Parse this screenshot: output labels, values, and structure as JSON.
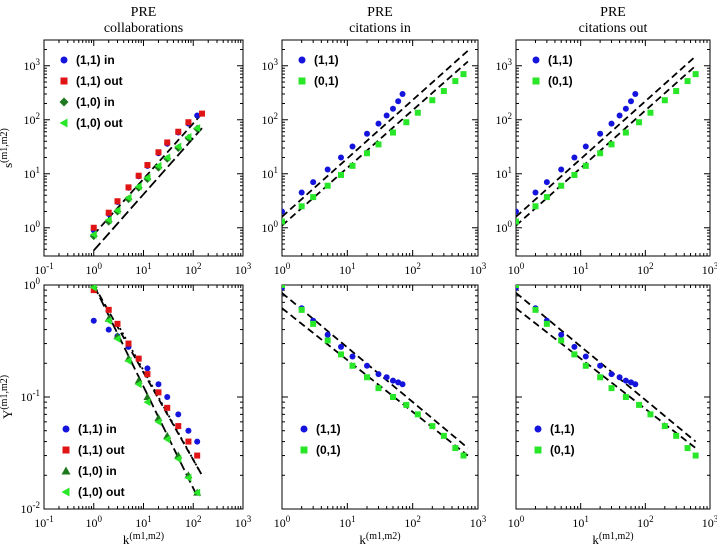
{
  "figure": {
    "shared_xlabel": "k",
    "shared_xlabel_sub": "(m1,m2)",
    "row_ylabels": [
      {
        "main": "s",
        "sub": "(m1,m2)"
      },
      {
        "main": "Y",
        "sub": "(m1,m2)"
      }
    ],
    "colors": {
      "blue": "#1414dc",
      "red": "#e01414",
      "darkgreen": "#1e781e",
      "lightgreen": "#28e628",
      "fit": "#000000"
    }
  },
  "chart_data": [
    {
      "id": "top-collab",
      "type": "scatter",
      "title": "PRE",
      "subtitle": "collaborations",
      "xscale": "log",
      "yscale": "log",
      "xlim": [
        0.1,
        1000
      ],
      "ylim": [
        0.3,
        3000
      ],
      "xticks": [
        "10-1",
        "100",
        "101",
        "102",
        "103"
      ],
      "yticks": [
        "100",
        "101",
        "102",
        "103"
      ],
      "series": [
        {
          "name": "(1,1) in",
          "marker": "circle",
          "color": "#1414dc",
          "x": [
            1,
            2,
            3,
            5,
            8,
            12,
            20,
            30,
            50,
            80,
            120
          ],
          "y": [
            0.9,
            1.8,
            3,
            5.5,
            9,
            14,
            24,
            36,
            58,
            85,
            120
          ]
        },
        {
          "name": "(1,1) out",
          "marker": "square",
          "color": "#e01414",
          "x": [
            1,
            2,
            3,
            5,
            8,
            12,
            20,
            30,
            50,
            80,
            150
          ],
          "y": [
            1,
            1.9,
            3.1,
            5.6,
            9.2,
            14.5,
            25,
            38,
            60,
            90,
            130
          ]
        },
        {
          "name": "(1,0) in",
          "marker": "diamond",
          "color": "#1e781e",
          "x": [
            1,
            2,
            3,
            5,
            8,
            12,
            20,
            30,
            50,
            80,
            120
          ],
          "y": [
            0.7,
            1.3,
            2,
            3.4,
            5.5,
            8,
            13,
            19,
            30,
            46,
            68
          ]
        },
        {
          "name": "(1,0) out",
          "marker": "triangle-left",
          "color": "#28e628",
          "x": [
            1,
            2,
            3,
            5,
            8,
            12,
            20,
            30,
            50,
            80,
            120
          ],
          "y": [
            0.75,
            1.4,
            2.1,
            3.6,
            5.8,
            8.5,
            14,
            20,
            32,
            48,
            70
          ]
        }
      ],
      "fit_lines": [
        {
          "x": [
            1,
            150
          ],
          "y": [
            0.38,
            70
          ],
          "style": "long-dash"
        },
        {
          "x": [
            1,
            150
          ],
          "y": [
            0.75,
            130
          ],
          "style": "dash"
        }
      ],
      "legend": {
        "position": "top-left",
        "entries": [
          "(1,1) in",
          "(1,1) out",
          "(1,0) in",
          "(1,0) out"
        ]
      }
    },
    {
      "id": "top-citin",
      "type": "scatter",
      "title": "PRE",
      "subtitle": "citations in",
      "xscale": "log",
      "yscale": "log",
      "xlim": [
        1,
        1000
      ],
      "ylim": [
        0.3,
        3000
      ],
      "xticks": [
        "100",
        "101",
        "102",
        "103"
      ],
      "yticks": [
        "100",
        "101",
        "102",
        "103"
      ],
      "series": [
        {
          "name": "(1,1)",
          "marker": "circle",
          "color": "#1414dc",
          "x": [
            1,
            2,
            3,
            5,
            8,
            12,
            20,
            30,
            40,
            50,
            60,
            70
          ],
          "y": [
            2,
            4.5,
            7,
            12,
            20,
            32,
            55,
            85,
            120,
            160,
            220,
            300
          ]
        },
        {
          "name": "(0,1)",
          "marker": "square",
          "color": "#28e628",
          "x": [
            1,
            2,
            3,
            5,
            8,
            12,
            20,
            30,
            50,
            80,
            120,
            200,
            300,
            450,
            600
          ],
          "y": [
            1.3,
            2.5,
            3.7,
            6,
            9.5,
            14,
            24,
            35,
            58,
            90,
            135,
            230,
            340,
            520,
            700
          ]
        }
      ],
      "fit_lines": [
        {
          "x": [
            1,
            700
          ],
          "y": [
            1.6,
            1900
          ],
          "style": "dash"
        },
        {
          "x": [
            1,
            700
          ],
          "y": [
            1.1,
            1200
          ],
          "style": "dash"
        }
      ],
      "legend": {
        "position": "top-left",
        "entries": [
          "(1,1)",
          "(0,1)"
        ]
      }
    },
    {
      "id": "top-citout",
      "type": "scatter",
      "title": "PRE",
      "subtitle": "citations out",
      "xscale": "log",
      "yscale": "log",
      "xlim": [
        1,
        1000
      ],
      "ylim": [
        0.3,
        3000
      ],
      "xticks": [
        "100",
        "101",
        "102",
        "103"
      ],
      "yticks": [
        "100",
        "101",
        "102",
        "103"
      ],
      "series": [
        {
          "name": "(1,1)",
          "marker": "circle",
          "color": "#1414dc",
          "x": [
            1,
            2,
            3,
            5,
            8,
            12,
            20,
            30,
            40,
            50,
            60,
            70
          ],
          "y": [
            2,
            4.5,
            7,
            12,
            20,
            32,
            55,
            85,
            120,
            160,
            220,
            300
          ]
        },
        {
          "name": "(0,1)",
          "marker": "square",
          "color": "#28e628",
          "x": [
            1,
            2,
            3,
            5,
            8,
            12,
            20,
            30,
            50,
            80,
            120,
            200,
            300,
            450,
            600
          ],
          "y": [
            1.3,
            2.5,
            3.7,
            6,
            9.5,
            14,
            24,
            35,
            58,
            90,
            135,
            230,
            340,
            520,
            700
          ]
        }
      ],
      "fit_lines": [
        {
          "x": [
            1,
            600
          ],
          "y": [
            1.6,
            1500
          ],
          "style": "dash"
        },
        {
          "x": [
            1,
            600
          ],
          "y": [
            1.1,
            1000
          ],
          "style": "dash"
        }
      ],
      "legend": {
        "position": "top-left",
        "entries": [
          "(1,1)",
          "(0,1)"
        ]
      }
    },
    {
      "id": "bot-collab",
      "type": "scatter",
      "xscale": "log",
      "yscale": "log",
      "xlim": [
        0.1,
        1000
      ],
      "ylim": [
        0.01,
        1
      ],
      "xticks": [
        "10-1",
        "100",
        "101",
        "102",
        "103"
      ],
      "yticks": [
        "10-2",
        "10-1",
        "100"
      ],
      "series": [
        {
          "name": "(1,1) in",
          "marker": "circle",
          "color": "#1414dc",
          "x": [
            1,
            2,
            3,
            5,
            8,
            12,
            20,
            30,
            50,
            80,
            120
          ],
          "y": [
            0.48,
            0.4,
            0.35,
            0.28,
            0.22,
            0.18,
            0.13,
            0.1,
            0.07,
            0.05,
            0.04
          ]
        },
        {
          "name": "(1,1) out",
          "marker": "square",
          "color": "#e01414",
          "x": [
            1,
            2,
            3,
            5,
            8,
            12,
            20,
            30,
            50,
            80,
            120
          ],
          "y": [
            0.9,
            0.6,
            0.45,
            0.3,
            0.22,
            0.16,
            0.11,
            0.08,
            0.055,
            0.04,
            0.03
          ]
        },
        {
          "name": "(1,0) in",
          "marker": "triangle-up",
          "color": "#1e781e",
          "x": [
            1,
            2,
            3,
            5,
            8,
            12,
            20,
            30,
            50,
            80,
            120
          ],
          "y": [
            1,
            0.5,
            0.35,
            0.22,
            0.14,
            0.1,
            0.065,
            0.045,
            0.03,
            0.02,
            0.014
          ]
        },
        {
          "name": "(1,0) out",
          "marker": "triangle-left",
          "color": "#28e628",
          "x": [
            1,
            2,
            3,
            5,
            8,
            12,
            20,
            30,
            50,
            80,
            120
          ],
          "y": [
            0.95,
            0.48,
            0.33,
            0.21,
            0.13,
            0.09,
            0.06,
            0.042,
            0.028,
            0.019,
            0.014
          ]
        }
      ],
      "fit_lines": [
        {
          "x": [
            1,
            120
          ],
          "y": [
            1,
            0.013
          ],
          "style": "long-dash"
        },
        {
          "x": [
            1,
            150
          ],
          "y": [
            1,
            0.02
          ],
          "style": "dash"
        },
        {
          "x": [
            3,
            150
          ],
          "y": [
            0.45,
            0.02
          ],
          "style": "dot"
        }
      ],
      "legend": {
        "position": "bottom-left",
        "entries": [
          "(1,1) in",
          "(1,1) out",
          "(1,0) in",
          "(1,0) out"
        ]
      }
    },
    {
      "id": "bot-citin",
      "type": "scatter",
      "xscale": "log",
      "yscale": "log",
      "xlim": [
        1,
        1000
      ],
      "ylim": [
        0.01,
        1
      ],
      "xticks": [
        "100",
        "101",
        "102",
        "103"
      ],
      "yticks": [],
      "series": [
        {
          "name": "(1,1)",
          "marker": "circle",
          "color": "#1414dc",
          "x": [
            1,
            2,
            3,
            5,
            8,
            12,
            20,
            30,
            40,
            50,
            60,
            70
          ],
          "y": [
            0.95,
            0.62,
            0.48,
            0.36,
            0.28,
            0.23,
            0.19,
            0.16,
            0.15,
            0.14,
            0.135,
            0.13
          ]
        },
        {
          "name": "(0,1)",
          "marker": "square",
          "color": "#28e628",
          "x": [
            1,
            2,
            3,
            5,
            8,
            12,
            20,
            30,
            50,
            80,
            120,
            200,
            300,
            450,
            600
          ],
          "y": [
            1,
            0.6,
            0.45,
            0.32,
            0.24,
            0.19,
            0.15,
            0.12,
            0.1,
            0.085,
            0.07,
            0.055,
            0.045,
            0.035,
            0.03
          ]
        }
      ],
      "fit_lines": [
        {
          "x": [
            1,
            700
          ],
          "y": [
            0.85,
            0.035
          ],
          "style": "dash"
        },
        {
          "x": [
            1,
            700
          ],
          "y": [
            0.62,
            0.03
          ],
          "style": "dash"
        }
      ],
      "legend": {
        "position": "bottom-left",
        "entries": [
          "(1,1)",
          "(0,1)"
        ]
      }
    },
    {
      "id": "bot-citout",
      "type": "scatter",
      "xscale": "log",
      "yscale": "log",
      "xlim": [
        1,
        1000
      ],
      "ylim": [
        0.01,
        1
      ],
      "xticks": [
        "100",
        "101",
        "102",
        "103"
      ],
      "yticks": [],
      "series": [
        {
          "name": "(1,1)",
          "marker": "circle",
          "color": "#1414dc",
          "x": [
            1,
            2,
            3,
            5,
            8,
            12,
            20,
            30,
            40,
            50,
            60,
            70
          ],
          "y": [
            0.95,
            0.62,
            0.48,
            0.36,
            0.28,
            0.23,
            0.19,
            0.16,
            0.15,
            0.14,
            0.135,
            0.13
          ]
        },
        {
          "name": "(0,1)",
          "marker": "square",
          "color": "#28e628",
          "x": [
            1,
            2,
            3,
            5,
            8,
            12,
            20,
            30,
            50,
            80,
            120,
            200,
            300,
            450,
            600
          ],
          "y": [
            1,
            0.6,
            0.45,
            0.32,
            0.24,
            0.19,
            0.15,
            0.12,
            0.1,
            0.085,
            0.07,
            0.055,
            0.045,
            0.035,
            0.03
          ]
        }
      ],
      "fit_lines": [
        {
          "x": [
            1,
            600
          ],
          "y": [
            0.85,
            0.04
          ],
          "style": "dash"
        },
        {
          "x": [
            1,
            600
          ],
          "y": [
            0.62,
            0.035
          ],
          "style": "dash"
        }
      ],
      "legend": {
        "position": "bottom-left",
        "entries": [
          "(1,1)",
          "(0,1)"
        ]
      }
    }
  ]
}
